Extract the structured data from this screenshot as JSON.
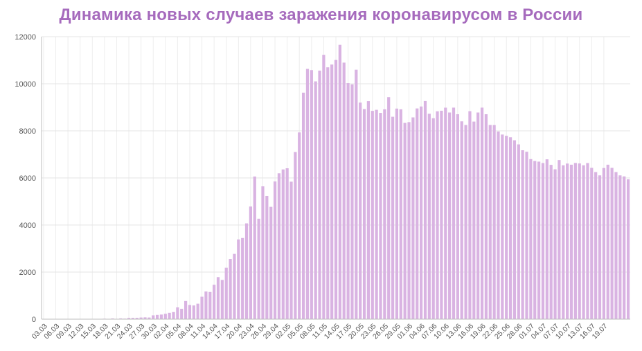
{
  "chart_data": {
    "type": "bar",
    "title": "Динамика новых случаев заражения коронавирусом в России",
    "xlabel": "",
    "ylabel": "",
    "ylim": [
      0,
      12000
    ],
    "yticks": [
      0,
      2000,
      4000,
      6000,
      8000,
      10000,
      12000
    ],
    "xtick_labels": [
      "03.03",
      "06.03",
      "09.03",
      "12.03",
      "15.03",
      "18.03",
      "21.03",
      "24.03",
      "27.03",
      "30.03",
      "02.04",
      "05.04",
      "08.04",
      "11.04",
      "14.04",
      "17.04",
      "20.04",
      "23.04",
      "26.04",
      "29.04",
      "02.05",
      "05.05",
      "08.05",
      "11.05",
      "14.05",
      "17.05",
      "20.05",
      "23.05",
      "26.05",
      "29.05",
      "01.06",
      "04.06",
      "07.06",
      "10.06",
      "13.06",
      "16.06",
      "19.06",
      "22.06",
      "25.06",
      "28.06",
      "01.07",
      "04.07",
      "07.07",
      "10.07",
      "13.07",
      "16.07",
      "19.07"
    ],
    "xtick_every": 3,
    "grid": true,
    "bar_color": "#d9b3e2",
    "values": [
      3,
      0,
      0,
      0,
      0,
      2,
      1,
      0,
      4,
      0,
      6,
      3,
      1,
      13,
      2,
      20,
      10,
      30,
      14,
      33,
      23,
      52,
      54,
      57,
      71,
      78,
      71,
      163,
      182,
      196,
      228,
      270,
      302,
      500,
      440,
      771,
      601,
      582,
      658,
      954,
      1175,
      1154,
      1459,
      1786,
      1667,
      2186,
      2558,
      2774,
      3388,
      3448,
      4070,
      4785,
      6060,
      4268,
      5642,
      5236,
      4774,
      5849,
      6198,
      6361,
      6411,
      5841,
      7099,
      7933,
      9623,
      10633,
      10581,
      10102,
      10559,
      11231,
      10699,
      10817,
      11012,
      11656,
      10899,
      10028,
      9974,
      10598,
      9200,
      8926,
      9263,
      8849,
      8894,
      8764,
      8915,
      9434,
      8599,
      8946,
      8915,
      8338,
      8371,
      8572,
      8952,
      9035,
      9268,
      8726,
      8536,
      8831,
      8855,
      8985,
      8779,
      8987,
      8706,
      8404,
      8248,
      8835,
      8394,
      8779,
      8987,
      8706,
      8248,
      8246,
      7972,
      7843,
      7790,
      7728,
      7600,
      7425,
      7176,
      7113,
      6800,
      6719,
      6693,
      6632,
      6791,
      6556,
      6368,
      6760,
      6537,
      6611,
      6562,
      6635,
      6615,
      6537,
      6632,
      6428,
      6248,
      6109,
      6422,
      6562,
      6428,
      6248,
      6109,
      6065,
      5940
    ]
  }
}
